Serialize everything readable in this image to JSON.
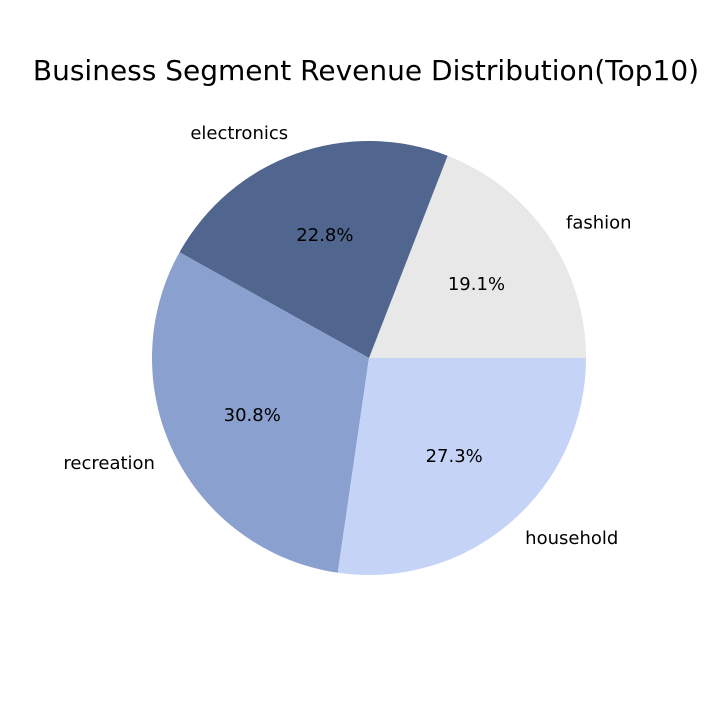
{
  "chart_data": {
    "type": "pie",
    "title": "Business Segment Revenue Distribution(Top10)",
    "start_angle_deg": 0,
    "direction": "counterclockwise",
    "slices": [
      {
        "label": "fashion",
        "value": 19.1,
        "pct_label": "19.1%",
        "color": "#e8e8e8"
      },
      {
        "label": "electronics",
        "value": 22.8,
        "pct_label": "22.8%",
        "color": "#51668e"
      },
      {
        "label": "recreation",
        "value": 30.8,
        "pct_label": "30.8%",
        "color": "#8aa0cf"
      },
      {
        "label": "household",
        "value": 27.3,
        "pct_label": "27.3%",
        "color": "#c5d4f6"
      }
    ]
  }
}
